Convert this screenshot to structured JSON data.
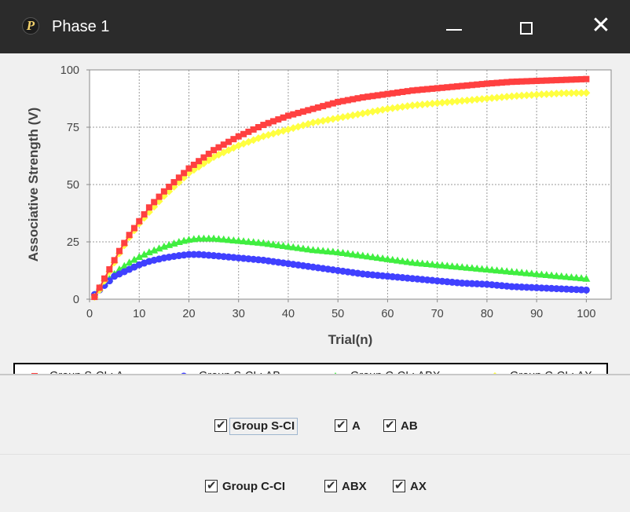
{
  "window": {
    "title": "Phase 1",
    "icon_letter": "P",
    "minimize_glyph": "minimize-icon",
    "maximize_glyph": "maximize-icon",
    "close_label": "✕"
  },
  "chart_data": {
    "type": "line",
    "xlabel": "Trial(n)",
    "ylabel": "Associative Strength (V)",
    "xlim": [
      0,
      105
    ],
    "ylim": [
      0,
      100
    ],
    "x_ticks": [
      0,
      10,
      20,
      30,
      40,
      50,
      60,
      70,
      80,
      90,
      100
    ],
    "y_ticks": [
      0,
      25,
      50,
      75,
      100
    ],
    "grid": true,
    "legend_position": "bottom",
    "series": [
      {
        "name": "Group S-CI : A",
        "color": "#ff4040",
        "marker": "square",
        "x": [
          1,
          2,
          3,
          4,
          5,
          6,
          8,
          10,
          12,
          15,
          20,
          25,
          30,
          35,
          40,
          45,
          50,
          55,
          60,
          65,
          70,
          75,
          80,
          85,
          90,
          95,
          100
        ],
        "y": [
          1,
          5,
          9,
          13,
          17,
          21,
          28,
          34,
          40,
          47,
          57,
          65,
          71,
          76,
          80,
          83,
          86,
          88,
          89.5,
          91,
          92,
          93,
          94,
          94.8,
          95.2,
          95.6,
          96
        ]
      },
      {
        "name": "Group S-CI : AB",
        "color": "#4040ff",
        "marker": "circle",
        "x": [
          1,
          2,
          3,
          4,
          5,
          6,
          8,
          10,
          12,
          15,
          18,
          20,
          22,
          25,
          30,
          35,
          40,
          45,
          50,
          55,
          60,
          65,
          70,
          75,
          80,
          85,
          90,
          95,
          100
        ],
        "y": [
          2,
          4,
          6,
          8,
          10,
          11,
          13,
          15,
          16.5,
          18,
          19,
          19.5,
          19.5,
          19,
          18,
          17,
          15.5,
          14,
          12.5,
          11,
          10,
          9,
          8,
          7,
          6.5,
          5.5,
          5,
          4.5,
          4
        ]
      },
      {
        "name": "Group C-CI : ABX",
        "color": "#40ee40",
        "marker": "triangle",
        "x": [
          1,
          2,
          3,
          4,
          5,
          6,
          8,
          10,
          12,
          15,
          18,
          20,
          22,
          25,
          30,
          35,
          40,
          45,
          50,
          55,
          60,
          65,
          70,
          75,
          80,
          85,
          90,
          95,
          100
        ],
        "y": [
          2,
          5,
          7,
          9,
          11,
          13,
          16,
          18.5,
          20.5,
          23,
          25,
          26,
          26.5,
          26.5,
          25.5,
          24.5,
          23,
          21.5,
          20.5,
          19,
          17.5,
          16,
          15,
          14,
          13,
          12,
          11,
          10,
          9
        ]
      },
      {
        "name": "Group C-CI : AX",
        "color": "#ffff40",
        "marker": "diamond",
        "x": [
          1,
          2,
          3,
          4,
          5,
          6,
          8,
          10,
          12,
          15,
          20,
          25,
          30,
          35,
          40,
          45,
          50,
          55,
          60,
          65,
          70,
          75,
          80,
          85,
          90,
          95,
          100
        ],
        "y": [
          1,
          4,
          8,
          12,
          16,
          20,
          27,
          33,
          38,
          45,
          55,
          62,
          67,
          71,
          74,
          77,
          79,
          81,
          83,
          84.5,
          85.5,
          86.5,
          87.5,
          88.5,
          89.2,
          89.8,
          90
        ]
      }
    ]
  },
  "controls": {
    "group1": {
      "label": "Group S-CI",
      "checked": true,
      "items": [
        {
          "label": "A",
          "checked": true
        },
        {
          "label": "AB",
          "checked": true
        }
      ]
    },
    "group2": {
      "label": "Group C-CI",
      "checked": true,
      "items": [
        {
          "label": "ABX",
          "checked": true
        },
        {
          "label": "AX",
          "checked": true
        }
      ]
    },
    "check_glyph": "✔"
  }
}
